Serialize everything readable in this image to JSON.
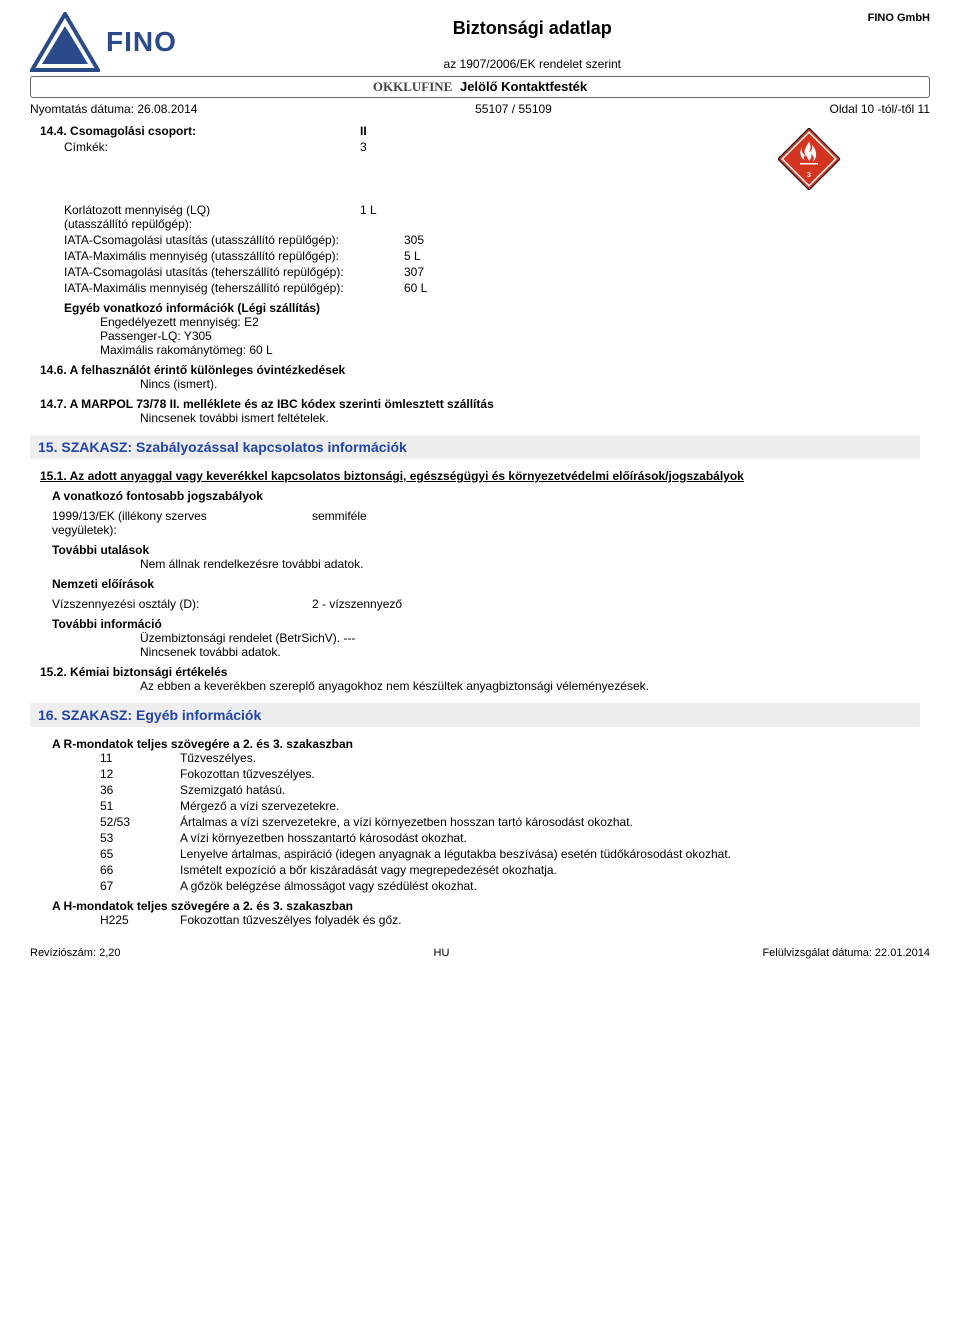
{
  "header": {
    "brand_left": "FINO",
    "brand_right": "FINO GmbH",
    "title": "Biztonsági adatlap",
    "subtitle": "az 1907/2006/EK rendelet szerint",
    "product_brand": "OKKLUFINE",
    "product_name": "Jelölő Kontaktfesték",
    "print_date_label": "Nyomtatás dátuma: 26.08.2014",
    "code": "55107 / 55109",
    "page": "Oldal 10 -tól/-től 11",
    "logo_color": "#2a4a8a"
  },
  "hazard": {
    "diamond_color": "#d33521",
    "hazard_class": "3"
  },
  "s14_4": {
    "heading": "14.4. Csomagolási csoport:",
    "heading_val": "II",
    "labels_label": "Címkék:",
    "labels_val": "3",
    "lq_label": "Korlátozott mennyiség (LQ) (utasszállító repülőgép):",
    "lq_label_l1": "Korlátozott mennyiség (LQ)",
    "lq_label_l2": "(utasszállító repülőgép):",
    "lq_val": "1 L",
    "iata_pack_pax_label": "IATA-Csomagolási utasítás (utasszállító repülőgép):",
    "iata_pack_pax_val": "305",
    "iata_max_pax_label": "IATA-Maximális mennyiség (utasszállító repülőgép):",
    "iata_max_pax_val": "5 L",
    "iata_pack_cargo_label": "IATA-Csomagolási utasítás (teherszállító repülőgép):",
    "iata_pack_cargo_val": "307",
    "iata_max_cargo_label": "IATA-Maximális mennyiség (teherszállító repülőgép):",
    "iata_max_cargo_val": "60 L",
    "other_air_label": "Egyéb vonatkozó információk (Légi szállítás)",
    "other_air_1": "Engedélyezett mennyiség: E2",
    "other_air_2": "Passenger-LQ: Y305",
    "other_air_3": "Maximális rakománytömeg: 60 L"
  },
  "s14_6": {
    "heading": "14.6. A felhasználót érintő különleges óvintézkedések",
    "body": "Nincs (ismert)."
  },
  "s14_7": {
    "heading": "14.7. A MARPOL 73/78 II. melléklete és az IBC kódex szerinti ömlesztett szállítás",
    "body": "Nincsenek további ismert feltételek."
  },
  "s15": {
    "title": "15. SZAKASZ: Szabályozással kapcsolatos információk",
    "s15_1_heading": "15.1. Az adott anyaggal vagy keverékkel kapcsolatos biztonsági, egészségügyi és környezetvédelmi előírások/jogszabályok",
    "regs_label": "A vonatkozó fontosabb jogszabályok",
    "voc_label_l1": "1999/13/EK (illékony szerves",
    "voc_label_l2": "vegyületek):",
    "voc_val": "semmiféle",
    "further_ref_label": "További utalások",
    "further_ref_body": "Nem állnak rendelkezésre további adatok.",
    "national_label": "Nemzeti előírások",
    "water_hazard_label": "Vízszennyezési osztály (D):",
    "water_hazard_val": "2 - vízszennyező",
    "further_info_label": "További információ",
    "further_info_1": "Üzembiztonsági rendelet (BetrSichV). ---",
    "further_info_2": "Nincsenek további adatok.",
    "s15_2_heading": "15.2. Kémiai biztonsági értékelés",
    "s15_2_body": "Az ebben a keverékben szereplő anyagokhoz nem készültek anyagbiztonsági véleményezések."
  },
  "s16": {
    "title": "16. SZAKASZ: Egyéb információk",
    "r_heading": "A R-mondatok teljes szövegére a 2. és 3. szakaszban",
    "r_phrases": [
      {
        "code": "11",
        "text": "Tűzveszélyes."
      },
      {
        "code": "12",
        "text": "Fokozottan tűzveszélyes."
      },
      {
        "code": "36",
        "text": "Szemizgató hatású."
      },
      {
        "code": "51",
        "text": "Mérgező a vízi szervezetekre."
      },
      {
        "code": "52/53",
        "text": "Ártalmas a vízi szervezetekre, a vízi környezetben hosszan tartó károsodást okozhat."
      },
      {
        "code": "53",
        "text": "A vízi környezetben hosszantartó károsodást okozhat."
      },
      {
        "code": "65",
        "text": "Lenyelve ártalmas, aspiráció (idegen anyagnak a légutakba beszívása) esetén tüdőkárosodást okozhat."
      },
      {
        "code": "66",
        "text": "Ismételt expozíció a bőr kiszáradását vagy megrepedezését okozhatja."
      },
      {
        "code": "67",
        "text": "A gőzök belégzése álmosságot vagy szédülést okozhat."
      }
    ],
    "h_heading": "A H-mondatok teljes szövegére a 2. és 3. szakaszban",
    "h_phrases": [
      {
        "code": "H225",
        "text": "Fokozottan tűzveszélyes folyadék és gőz."
      }
    ]
  },
  "footer": {
    "left": "Revíziószám: 2,20",
    "center": "HU",
    "right": "Felülvizsgálat dátuma: 22.01.2014"
  }
}
